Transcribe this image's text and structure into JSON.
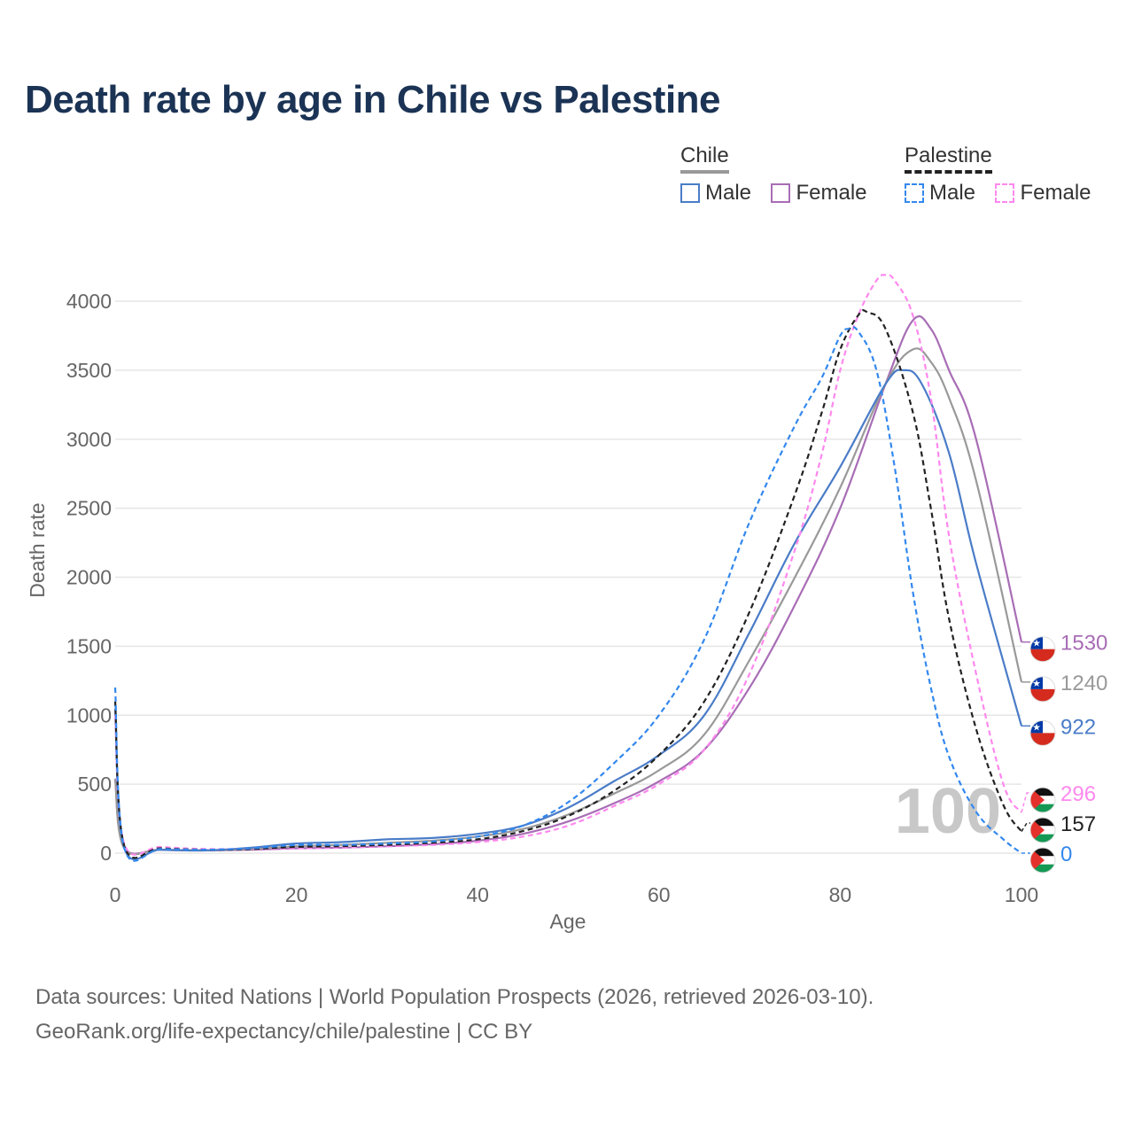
{
  "title": "Death rate by age in Chile vs Palestine",
  "legend": {
    "chile": {
      "label": "Chile",
      "male": "Male",
      "female": "Female"
    },
    "palestine": {
      "label": "Palestine",
      "male": "Male",
      "female": "Female"
    }
  },
  "watermark_year": "100",
  "footer": {
    "line1": "Data sources: United Nations | World Population Prospects (2026, retrieved 2026-03-10).",
    "line2": "GeoRank.org/life-expectancy/chile/palestine | CC BY"
  },
  "chart_data": {
    "type": "line",
    "title": "Death rate by age in Chile vs Palestine",
    "xlabel": "Age",
    "ylabel": "Death rate",
    "xlim": [
      0,
      100
    ],
    "ylim": [
      0,
      4000
    ],
    "xticks": [
      0,
      20,
      40,
      60,
      80,
      100
    ],
    "yticks": [
      0,
      500,
      1000,
      1500,
      2000,
      2500,
      3000,
      3500,
      4000
    ],
    "grid": true,
    "series": [
      {
        "name": "Chile Female",
        "country": "Chile",
        "sex": "Female",
        "color": "#a86db5",
        "dashed": false,
        "end_label": "1530",
        "x": [
          0,
          1,
          5,
          10,
          15,
          20,
          25,
          30,
          35,
          40,
          45,
          50,
          55,
          60,
          65,
          70,
          75,
          80,
          85,
          88,
          90,
          92,
          95,
          100
        ],
        "y": [
          540,
          40,
          25,
          20,
          25,
          35,
          40,
          50,
          65,
          90,
          140,
          230,
          360,
          520,
          750,
          1200,
          1800,
          2500,
          3400,
          3860,
          3800,
          3500,
          3000,
          1530
        ]
      },
      {
        "name": "Chile Both",
        "country": "Chile",
        "sex": "Both",
        "color": "#999999",
        "dashed": false,
        "end_label": "1240",
        "x": [
          0,
          1,
          5,
          10,
          15,
          20,
          25,
          30,
          35,
          40,
          45,
          50,
          55,
          60,
          65,
          70,
          75,
          80,
          85,
          88,
          90,
          92,
          95,
          100
        ],
        "y": [
          540,
          35,
          25,
          20,
          30,
          50,
          60,
          75,
          90,
          120,
          175,
          280,
          430,
          600,
          860,
          1400,
          2000,
          2650,
          3400,
          3650,
          3560,
          3300,
          2700,
          1240
        ]
      },
      {
        "name": "Chile Male",
        "country": "Chile",
        "sex": "Male",
        "color": "#4a7cc7",
        "dashed": false,
        "end_label": "922",
        "x": [
          0,
          1,
          5,
          10,
          15,
          20,
          25,
          30,
          35,
          40,
          45,
          50,
          55,
          60,
          65,
          70,
          75,
          80,
          85,
          87,
          89,
          92,
          95,
          100
        ],
        "y": [
          1050,
          40,
          25,
          20,
          40,
          70,
          80,
          100,
          110,
          140,
          200,
          330,
          520,
          710,
          1000,
          1600,
          2250,
          2800,
          3400,
          3500,
          3400,
          2900,
          2100,
          922
        ]
      },
      {
        "name": "Palestine Female",
        "country": "Palestine",
        "sex": "Female",
        "color": "#ff88ee",
        "dashed": true,
        "end_label": "296",
        "x": [
          0,
          1,
          5,
          10,
          15,
          20,
          25,
          30,
          35,
          40,
          45,
          50,
          55,
          60,
          65,
          70,
          75,
          78,
          80,
          82,
          84,
          85,
          86,
          88,
          90,
          92,
          95,
          98,
          100
        ],
        "y": [
          1000,
          70,
          45,
          30,
          30,
          35,
          40,
          50,
          60,
          80,
          120,
          200,
          340,
          500,
          750,
          1300,
          2200,
          2900,
          3500,
          3900,
          4150,
          4190,
          4150,
          3900,
          3300,
          2300,
          1300,
          500,
          296
        ]
      },
      {
        "name": "Palestine Both",
        "country": "Palestine",
        "sex": "Both",
        "color": "#222222",
        "dashed": true,
        "end_label": "157",
        "x": [
          0,
          1,
          5,
          10,
          15,
          20,
          25,
          30,
          35,
          40,
          45,
          50,
          55,
          60,
          65,
          70,
          75,
          78,
          80,
          82,
          83,
          85,
          88,
          90,
          92,
          95,
          98,
          100
        ],
        "y": [
          1100,
          55,
          35,
          25,
          30,
          45,
          50,
          60,
          75,
          100,
          160,
          270,
          450,
          710,
          1100,
          1750,
          2600,
          3200,
          3650,
          3900,
          3920,
          3800,
          3200,
          2500,
          1700,
          900,
          350,
          157
        ]
      },
      {
        "name": "Palestine Male",
        "country": "Palestine",
        "sex": "Male",
        "color": "#3388ee",
        "dashed": true,
        "end_label": "0",
        "x": [
          0,
          1,
          5,
          10,
          15,
          20,
          25,
          30,
          35,
          40,
          45,
          50,
          55,
          60,
          65,
          70,
          75,
          78,
          80,
          81,
          82,
          84,
          86,
          88,
          90,
          92,
          95,
          98,
          100
        ],
        "y": [
          1200,
          40,
          30,
          25,
          35,
          60,
          60,
          70,
          85,
          120,
          200,
          370,
          650,
          1000,
          1550,
          2400,
          3100,
          3450,
          3750,
          3800,
          3780,
          3500,
          2800,
          1900,
          1200,
          700,
          300,
          100,
          0
        ]
      }
    ]
  }
}
